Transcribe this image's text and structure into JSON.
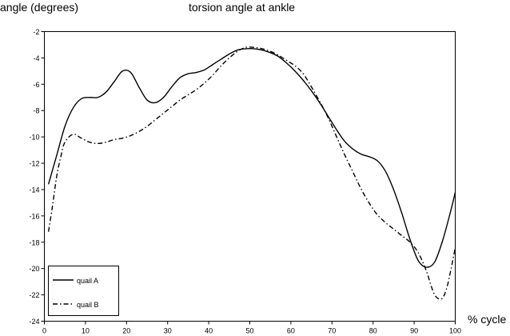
{
  "chart_data": {
    "type": "line",
    "title": "torsion angle at ankle",
    "ylabel": "angle (degrees)",
    "xlabel": "% cycle",
    "xlim": [
      0,
      100
    ],
    "ylim": [
      -24,
      -2
    ],
    "x_ticks": [
      0,
      10,
      20,
      30,
      40,
      50,
      60,
      70,
      80,
      90,
      100
    ],
    "y_ticks": [
      -24,
      -22,
      -20,
      -18,
      -16,
      -14,
      -12,
      -10,
      -8,
      -6,
      -4,
      -2
    ],
    "grid": false,
    "legend": {
      "placement": "bottom-left"
    },
    "series": [
      {
        "name": "quail A",
        "style": "solid",
        "x": [
          1,
          3,
          5,
          7,
          9,
          11,
          13,
          15,
          17,
          19,
          21,
          23,
          25,
          27,
          29,
          31,
          33,
          35,
          37,
          39,
          41,
          43,
          45,
          47,
          49,
          51,
          53,
          55,
          57,
          59,
          61,
          63,
          65,
          67,
          69,
          71,
          73,
          75,
          77,
          79,
          81,
          83,
          85,
          87,
          89,
          91,
          93,
          95,
          97,
          99,
          100
        ],
        "values": [
          -13.6,
          -11.4,
          -9.2,
          -7.8,
          -7.1,
          -7.0,
          -7.0,
          -6.6,
          -5.8,
          -5.0,
          -5.1,
          -6.2,
          -7.2,
          -7.4,
          -7.0,
          -6.2,
          -5.5,
          -5.2,
          -5.1,
          -4.9,
          -4.5,
          -4.1,
          -3.7,
          -3.4,
          -3.3,
          -3.3,
          -3.4,
          -3.6,
          -3.9,
          -4.4,
          -5.0,
          -5.7,
          -6.5,
          -7.4,
          -8.4,
          -9.4,
          -10.3,
          -10.9,
          -11.3,
          -11.5,
          -11.8,
          -12.6,
          -14.0,
          -15.8,
          -17.8,
          -19.4,
          -19.9,
          -19.5,
          -17.8,
          -15.5,
          -14.2
        ]
      },
      {
        "name": "quail B",
        "style": "dash-dot",
        "x": [
          1,
          2,
          3,
          4,
          5,
          7,
          9,
          11,
          13,
          15,
          17,
          19,
          21,
          23,
          25,
          27,
          29,
          31,
          33,
          35,
          37,
          39,
          41,
          43,
          45,
          47,
          49,
          51,
          53,
          55,
          57,
          59,
          61,
          63,
          65,
          67,
          69,
          71,
          73,
          75,
          77,
          79,
          81,
          83,
          85,
          87,
          89,
          91,
          93,
          94,
          95,
          96,
          97,
          98,
          99,
          100
        ],
        "values": [
          -17.2,
          -15.2,
          -13.0,
          -11.5,
          -10.4,
          -9.8,
          -10.1,
          -10.4,
          -10.5,
          -10.4,
          -10.2,
          -10.1,
          -9.9,
          -9.6,
          -9.2,
          -8.7,
          -8.2,
          -7.7,
          -7.2,
          -6.8,
          -6.4,
          -5.9,
          -5.3,
          -4.6,
          -4.0,
          -3.5,
          -3.2,
          -3.2,
          -3.3,
          -3.5,
          -3.8,
          -4.2,
          -4.6,
          -5.2,
          -6.2,
          -7.3,
          -8.5,
          -9.9,
          -11.3,
          -12.6,
          -13.9,
          -15.0,
          -15.9,
          -16.5,
          -17.0,
          -17.5,
          -18.0,
          -18.8,
          -20.2,
          -21.2,
          -22.0,
          -22.3,
          -22.2,
          -21.4,
          -20.0,
          -18.4
        ]
      }
    ]
  }
}
